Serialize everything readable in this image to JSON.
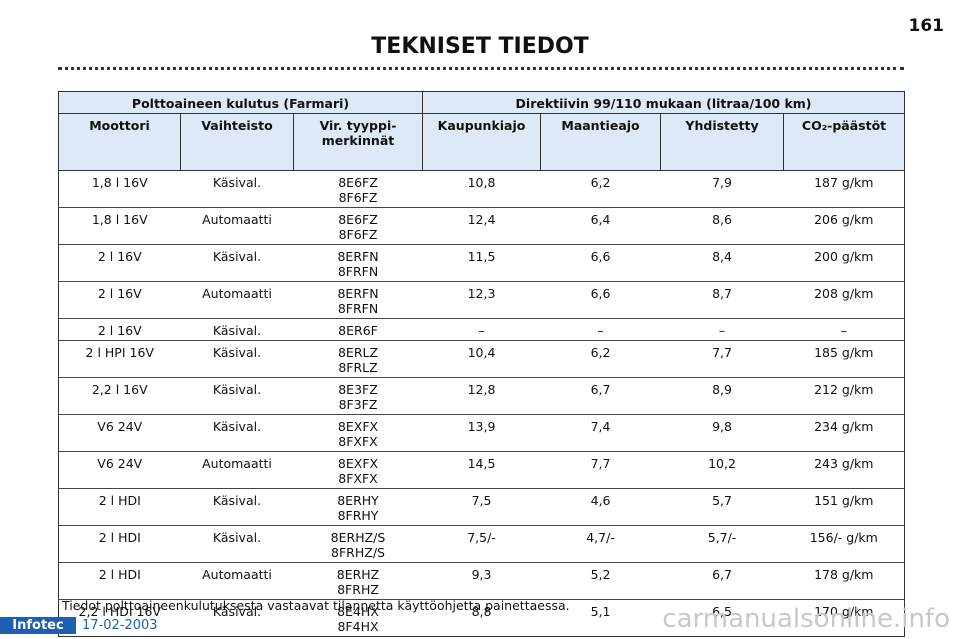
{
  "page_number": "161",
  "title": "TEKNISET TIEDOT",
  "table": {
    "group_headers": [
      "Polttoaineen kulutus (Farmari)",
      "Direktiivin 99/110 mukaan (litraa/100 km)"
    ],
    "columns": [
      "Moottori",
      "Vaihteisto",
      "Vir. tyyppi-merkinnät",
      "Kaupunkiajo",
      "Maantieajo",
      "Yhdistetty",
      "CO₂-päästöt"
    ],
    "rows": [
      [
        "1,8 l 16V",
        "Käsival.",
        [
          "8E6FZ",
          "8F6FZ"
        ],
        "10,8",
        "6,2",
        "7,9",
        "187 g/km"
      ],
      [
        "1,8 l 16V",
        "Automaatti",
        [
          "8E6FZ",
          "8F6FZ"
        ],
        "12,4",
        "6,4",
        "8,6",
        "206 g/km"
      ],
      [
        "2 l 16V",
        "Käsival.",
        [
          "8ERFN",
          "8FRFN"
        ],
        "11,5",
        "6,6",
        "8,4",
        "200 g/km"
      ],
      [
        "2 l 16V",
        "Automaatti",
        [
          "8ERFN",
          "8FRFN"
        ],
        "12,3",
        "6,6",
        "8,7",
        "208 g/km"
      ],
      [
        "2 l 16V",
        "Käsival.",
        [
          "8ER6F"
        ],
        "–",
        "–",
        "–",
        "–"
      ],
      [
        "2 l HPI 16V",
        "Käsival.",
        [
          "8ERLZ",
          "8FRLZ"
        ],
        "10,4",
        "6,2",
        "7,7",
        "185 g/km"
      ],
      [
        "2,2 l 16V",
        "Käsival.",
        [
          "8E3FZ",
          "8F3FZ"
        ],
        "12,8",
        "6,7",
        "8,9",
        "212 g/km"
      ],
      [
        "V6 24V",
        "Käsival.",
        [
          "8EXFX",
          "8FXFX"
        ],
        "13,9",
        "7,4",
        "9,8",
        "234 g/km"
      ],
      [
        "V6 24V",
        "Automaatti",
        [
          "8EXFX",
          "8FXFX"
        ],
        "14,5",
        "7,7",
        "10,2",
        "243 g/km"
      ],
      [
        "2 l HDI",
        "Käsival.",
        [
          "8ERHY",
          "8FRHY"
        ],
        "7,5",
        "4,6",
        "5,7",
        "151 g/km"
      ],
      [
        "2 l HDI",
        "Käsival.",
        [
          "8ERHZ/S",
          "8FRHZ/S"
        ],
        "7,5/-",
        "4,7/-",
        "5,7/-",
        "156/- g/km"
      ],
      [
        "2 l HDI",
        "Automaatti",
        [
          "8ERHZ",
          "8FRHZ"
        ],
        "9,3",
        "5,2",
        "6,7",
        "178 g/km"
      ],
      [
        "2,2 l HDI 16V",
        "Käsival.",
        [
          "8E4HX",
          "8F4HX"
        ],
        "8,8",
        "5,1",
        "6,5",
        "170 g/km"
      ]
    ]
  },
  "footnote": "Tiedot polttoaineenkulutuksesta vastaavat tilannetta käyttöohjetta painettaessa.",
  "footer": {
    "logo": "Infotec",
    "date": "17-02-2003",
    "watermark": "carmanualsonline.info"
  }
}
